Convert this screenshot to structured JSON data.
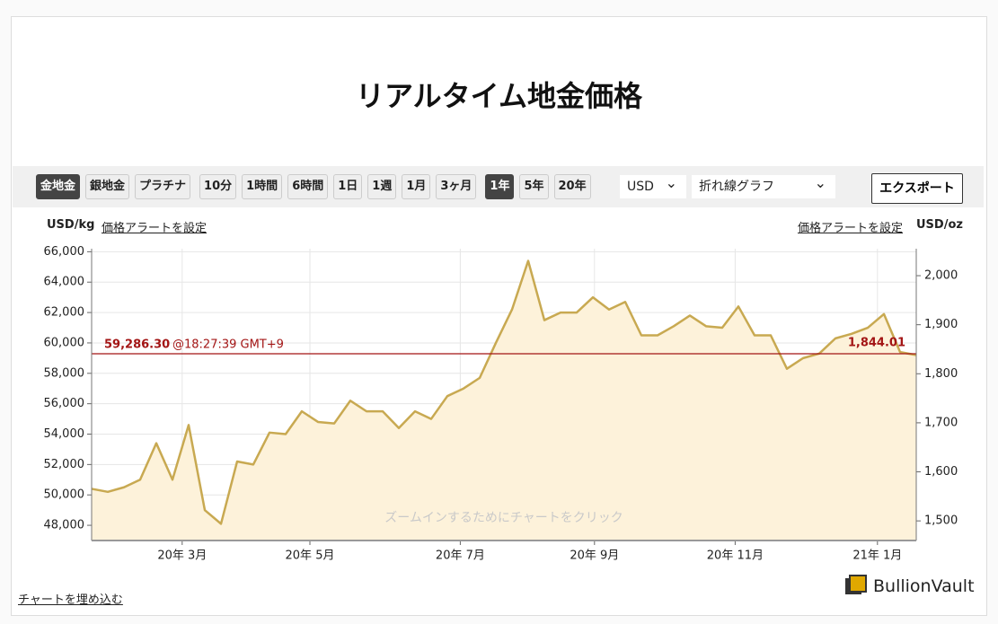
{
  "header": {
    "title": "リアルタイム地金価格"
  },
  "toolbar": {
    "buttons": [
      {
        "label": "金地金",
        "active": true
      },
      {
        "label": "銀地金",
        "active": false
      },
      {
        "label": "プラチナ",
        "active": false
      },
      {
        "label": "10分",
        "active": false
      },
      {
        "label": "1時間",
        "active": false
      },
      {
        "label": "6時間",
        "active": false
      },
      {
        "label": "1日",
        "active": false
      },
      {
        "label": "1週",
        "active": false
      },
      {
        "label": "1月",
        "active": false
      },
      {
        "label": "3ヶ月",
        "active": false
      },
      {
        "label": "1年",
        "active": true
      },
      {
        "label": "5年",
        "active": false
      },
      {
        "label": "20年",
        "active": false
      }
    ],
    "currency": "USD",
    "chart_style": "折れ線グラフ",
    "export": "エクスポート"
  },
  "alert_left": "価格アラートを設定",
  "alert_right": "価格アラートを設定",
  "embed": "チャートを埋め込む",
  "logo": "BullionVault",
  "chart_data": {
    "type": "line",
    "y_label": "USD/kg",
    "y2_label": "USD/oz",
    "watermark": "ズームインするためにチャートをクリック",
    "xlim": [
      0,
      51
    ],
    "xticks": [
      {
        "value": 5.6,
        "label": "20年 3月"
      },
      {
        "value": 13.5,
        "label": "20年 5月"
      },
      {
        "value": 22.8,
        "label": "20年 7月"
      },
      {
        "value": 31.1,
        "label": "20年 9月"
      },
      {
        "value": 39.8,
        "label": "20年 11月"
      },
      {
        "value": 48.6,
        "label": "21年 1月"
      }
    ],
    "ylim": [
      47000,
      66200
    ],
    "yticks": [
      {
        "value": 48000,
        "label": "48,000"
      },
      {
        "value": 50000,
        "label": "50,000"
      },
      {
        "value": 52000,
        "label": "52,000"
      },
      {
        "value": 54000,
        "label": "54,000"
      },
      {
        "value": 56000,
        "label": "56,000"
      },
      {
        "value": 58000,
        "label": "58,000"
      },
      {
        "value": 60000,
        "label": "60,000"
      },
      {
        "value": 62000,
        "label": "62,000"
      },
      {
        "value": 64000,
        "label": "64,000"
      },
      {
        "value": 66000,
        "label": "66,000"
      }
    ],
    "y2lim": [
      1460,
      2055
    ],
    "y2ticks": [
      {
        "value": 1500,
        "label": "1,500"
      },
      {
        "value": 1600,
        "label": "1,600"
      },
      {
        "value": 1700,
        "label": "1,700"
      },
      {
        "value": 1800,
        "label": "1,800"
      },
      {
        "value": 1900,
        "label": "1,900"
      },
      {
        "value": 2000,
        "label": "2,000"
      }
    ],
    "grid": true,
    "series": [
      {
        "name": "金地金",
        "color": "#c8a951",
        "fill": "#fdf2da",
        "values": [
          50400,
          50200,
          50500,
          51000,
          53400,
          51000,
          54600,
          49000,
          48100,
          52200,
          52000,
          54100,
          54000,
          55500,
          54800,
          54700,
          56200,
          55500,
          55500,
          54400,
          55500,
          55000,
          56500,
          57000,
          57700,
          60000,
          62200,
          65400,
          61500,
          62000,
          62000,
          63000,
          62200,
          62700,
          60500,
          60500,
          61100,
          61800,
          61100,
          61000,
          62400,
          60500,
          60500,
          58300,
          59000,
          59300,
          60300,
          60600,
          61000,
          61900,
          59400,
          59200
        ]
      }
    ],
    "reference_line": {
      "value": 59286.3,
      "label": "59,286.30",
      "time": "@18:27:39 GMT+9",
      "y2_value": 1844.01,
      "y2_label": "1,844.01",
      "color": "#a31515"
    }
  }
}
